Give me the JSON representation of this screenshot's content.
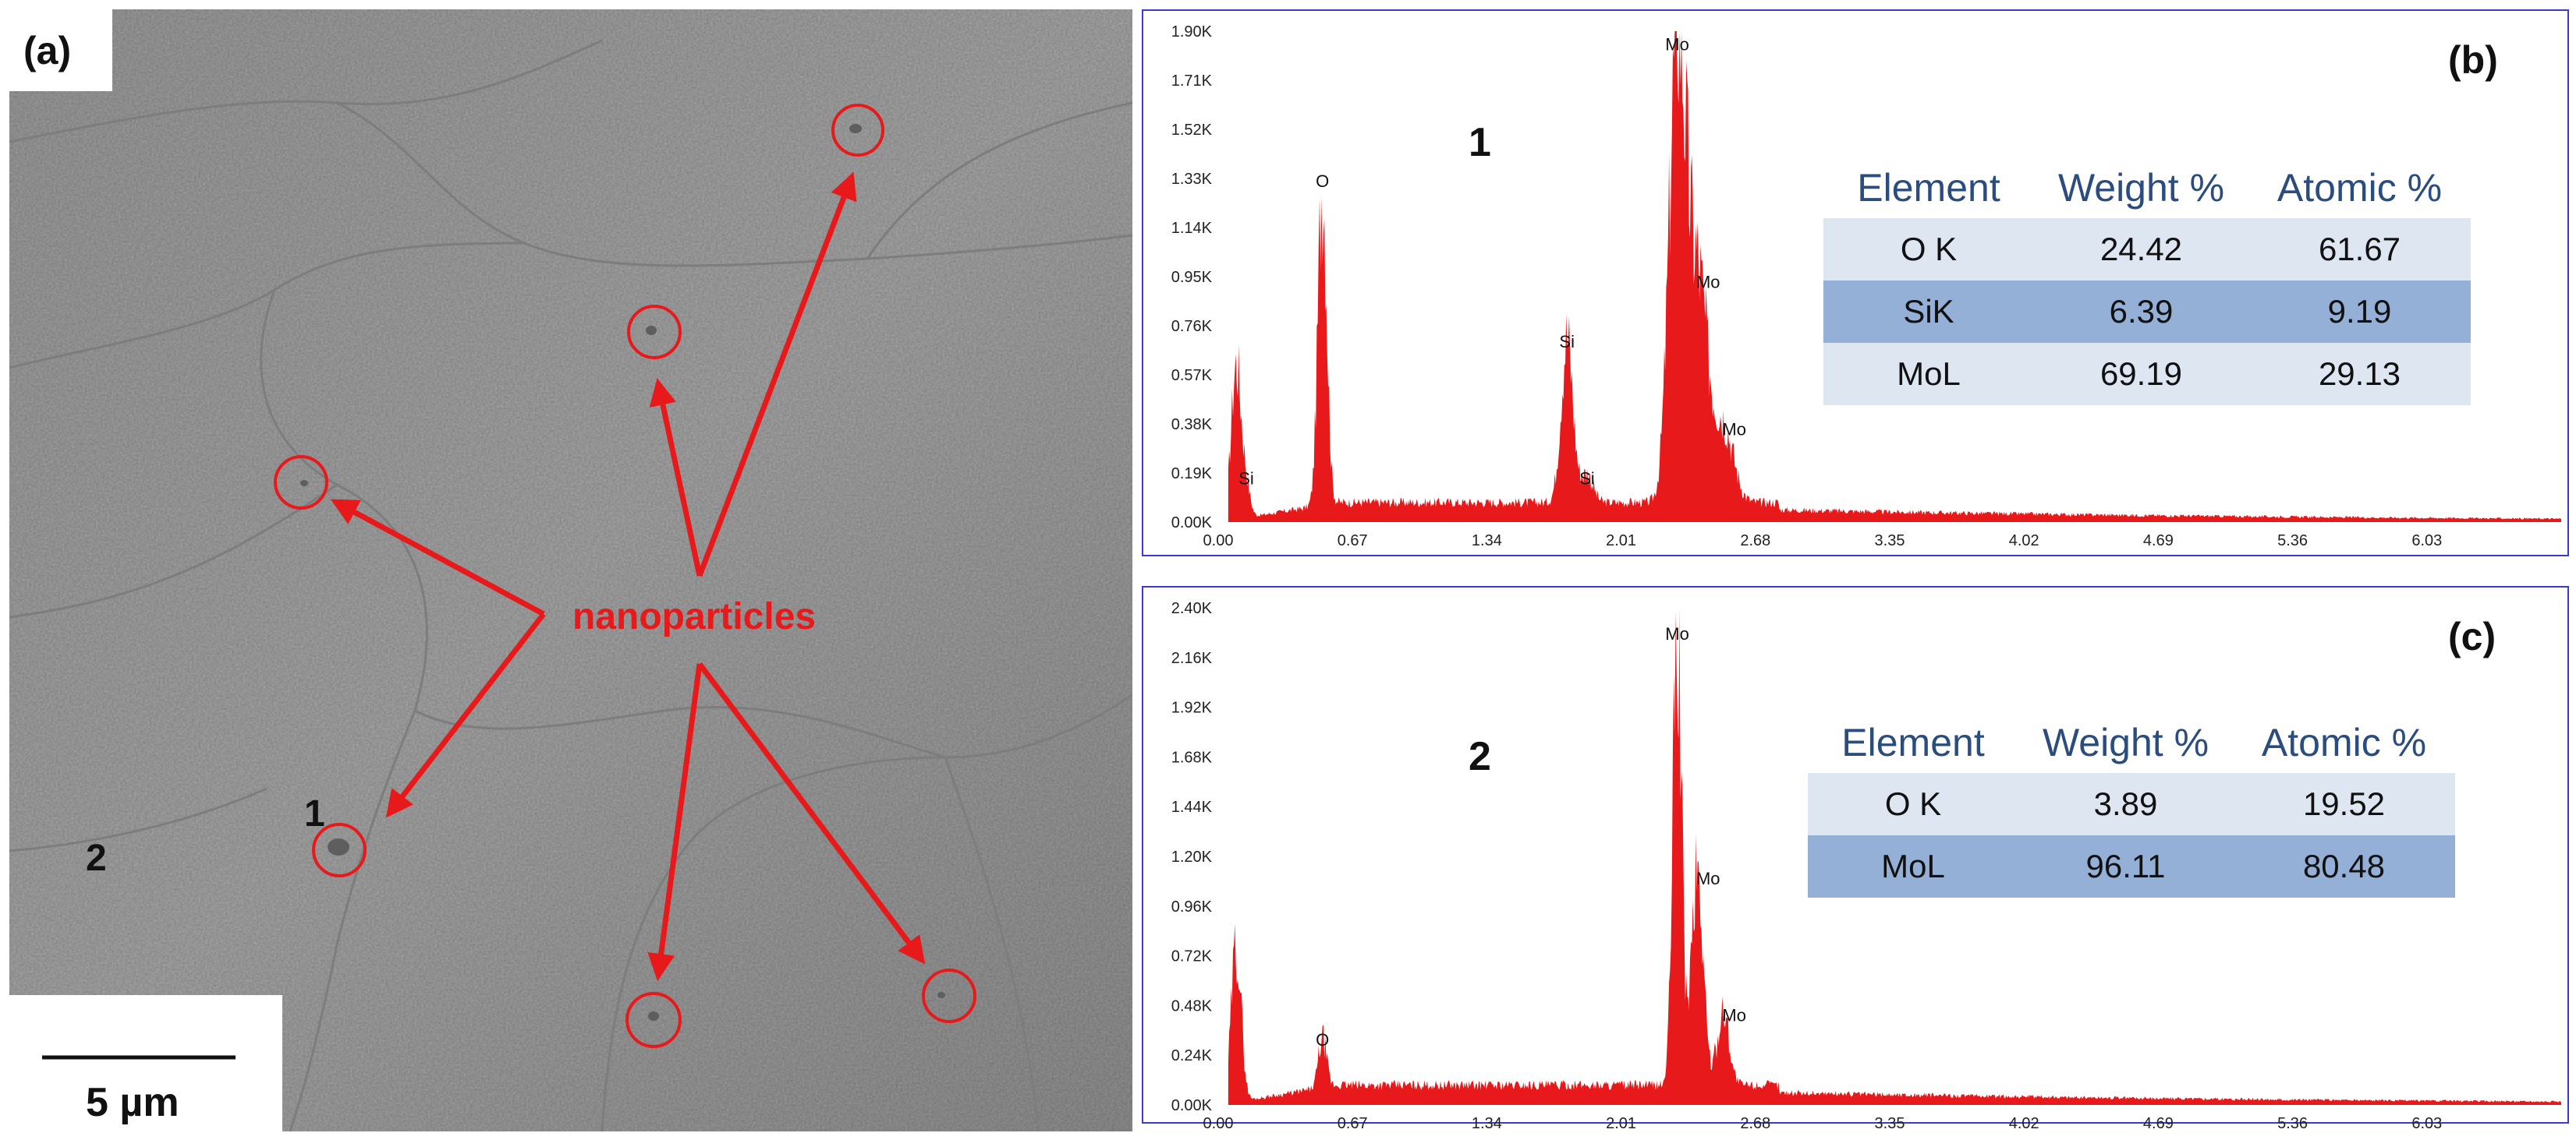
{
  "panel_a": {
    "label": "(a)",
    "annotation": "nanoparticles",
    "site_1": "1",
    "site_2": "2",
    "scale_bar": "5 µm",
    "annotation_color": "#e8191b"
  },
  "panel_b": {
    "label": "(b)",
    "site": "1",
    "table": {
      "headers": [
        "Element",
        "Weight %",
        "Atomic %"
      ],
      "rows": [
        [
          "O K",
          "24.42",
          "61.67"
        ],
        [
          "SiK",
          "6.39",
          "9.19"
        ],
        [
          "MoL",
          "69.19",
          "29.13"
        ]
      ]
    }
  },
  "panel_c": {
    "label": "(c)",
    "site": "2",
    "table": {
      "headers": [
        "Element",
        "Weight %",
        "Atomic %"
      ],
      "rows": [
        [
          "O K",
          "3.89",
          "19.52"
        ],
        [
          "MoL",
          "96.11",
          "80.48"
        ]
      ]
    }
  },
  "chart_data": [
    {
      "type": "area",
      "panel": "(b)",
      "title": "",
      "xlabel": "",
      "ylabel": "",
      "xlim": [
        0.0,
        6.7
      ],
      "ylim": [
        0,
        1900
      ],
      "x_ticks": [
        "0.00",
        "0.67",
        "1.34",
        "2.01",
        "2.68",
        "3.35",
        "4.02",
        "4.69",
        "5.36",
        "6.03"
      ],
      "y_ticks": [
        "0.00K",
        "0.19K",
        "0.38K",
        "0.57K",
        "0.76K",
        "0.95K",
        "1.14K",
        "1.33K",
        "1.52K",
        "1.71K",
        "1.90K"
      ],
      "series_color": "#e8191b",
      "peaks": [
        {
          "x": 0.09,
          "y": 600,
          "label": ""
        },
        {
          "x": 0.14,
          "y": 110,
          "label": "Si"
        },
        {
          "x": 0.52,
          "y": 1260,
          "label": "O"
        },
        {
          "x": 1.74,
          "y": 640,
          "label": "Si"
        },
        {
          "x": 1.84,
          "y": 110,
          "label": "Si"
        },
        {
          "x": 2.29,
          "y": 1790,
          "label": "Mo"
        },
        {
          "x": 2.39,
          "y": 870,
          "label": "Mo"
        },
        {
          "x": 2.52,
          "y": 300,
          "label": "Mo"
        }
      ]
    },
    {
      "type": "area",
      "panel": "(c)",
      "title": "",
      "xlabel": "",
      "ylabel": "",
      "xlim": [
        0.0,
        6.7
      ],
      "ylim": [
        0,
        2400
      ],
      "x_ticks": [
        "0.00",
        "0.67",
        "1.34",
        "2.01",
        "2.68",
        "3.35",
        "4.02",
        "4.69",
        "5.36",
        "6.03"
      ],
      "y_ticks": [
        "0.00K",
        "0.24K",
        "0.48K",
        "0.72K",
        "0.96K",
        "1.20K",
        "1.44K",
        "1.68K",
        "1.92K",
        "2.16K",
        "2.40K"
      ],
      "series_color": "#e8191b",
      "peaks": [
        {
          "x": 0.09,
          "y": 760,
          "label": ""
        },
        {
          "x": 0.52,
          "y": 240,
          "label": "O"
        },
        {
          "x": 2.29,
          "y": 2200,
          "label": "Mo"
        },
        {
          "x": 2.39,
          "y": 1020,
          "label": "Mo"
        },
        {
          "x": 2.52,
          "y": 360,
          "label": "Mo"
        }
      ]
    }
  ]
}
